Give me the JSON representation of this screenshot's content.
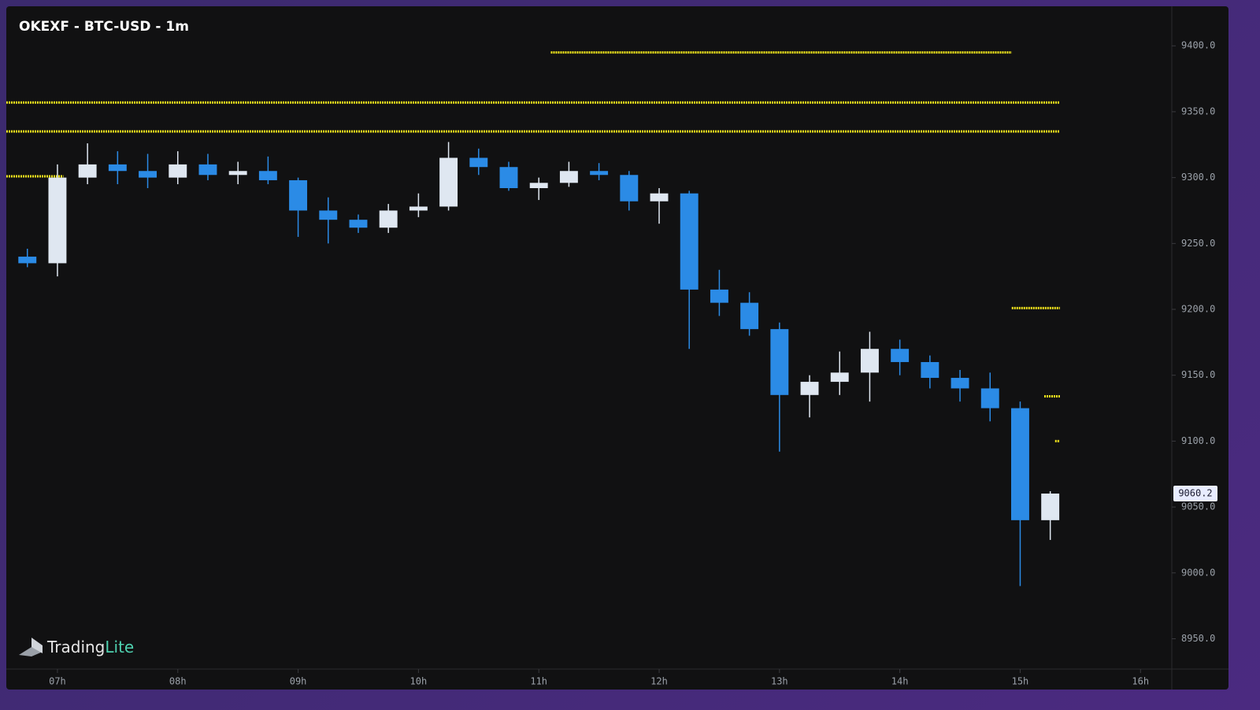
{
  "chart_data": {
    "type": "candlestick",
    "title": "OKEXF - BTC-USD - 1m",
    "watermark": [
      "Trading",
      "Lite"
    ],
    "x": [
      6.625,
      6.875,
      7.125,
      7.375,
      7.625,
      7.875,
      8.125,
      8.375,
      8.625,
      8.875,
      9.125,
      9.375,
      9.625,
      9.875,
      10.125,
      10.375,
      10.625,
      10.875,
      11.125,
      11.375,
      11.625,
      11.875,
      12.125,
      12.375,
      12.625,
      12.875,
      13.125,
      13.375,
      13.625,
      13.875,
      14.125,
      14.375,
      14.625,
      14.875,
      15.125
    ],
    "open": [
      9240,
      9235,
      9300,
      9310,
      9305,
      9300,
      9310,
      9302,
      9305,
      9298,
      9275,
      9268,
      9262,
      9275,
      9278,
      9315,
      9308,
      9292,
      9296,
      9305,
      9302,
      9282,
      9288,
      9215,
      9205,
      9185,
      9135,
      9145,
      9152,
      9170,
      9160,
      9148,
      9140,
      9125,
      9040
    ],
    "high": [
      9246,
      9310,
      9326,
      9320,
      9318,
      9320,
      9318,
      9312,
      9316,
      9300,
      9285,
      9272,
      9280,
      9288,
      9327,
      9322,
      9312,
      9300,
      9312,
      9311,
      9305,
      9292,
      9290,
      9230,
      9213,
      9190,
      9150,
      9168,
      9183,
      9177,
      9165,
      9154,
      9152,
      9130,
      9062
    ],
    "low": [
      9232,
      9225,
      9295,
      9295,
      9292,
      9295,
      9298,
      9295,
      9295,
      9255,
      9250,
      9258,
      9258,
      9270,
      9275,
      9302,
      9290,
      9283,
      9293,
      9298,
      9275,
      9265,
      9170,
      9195,
      9180,
      9092,
      9118,
      9135,
      9130,
      9150,
      9140,
      9130,
      9115,
      8990,
      9025
    ],
    "close": [
      9235,
      9300,
      9310,
      9305,
      9300,
      9310,
      9302,
      9305,
      9298,
      9275,
      9268,
      9262,
      9275,
      9278,
      9315,
      9308,
      9292,
      9296,
      9305,
      9302,
      9282,
      9288,
      9215,
      9205,
      9185,
      9135,
      9145,
      9152,
      9170,
      9160,
      9148,
      9140,
      9125,
      9040,
      9060.2
    ],
    "candle_width": 0.25,
    "up_color": "#dfe7f1",
    "down_color": "#2b8be6",
    "level_color": "#f2e51c",
    "levels": [
      {
        "price": 9395,
        "start": 11.1,
        "end": 14.93
      },
      {
        "price": 9357,
        "start": 6.575,
        "end": 15.33
      },
      {
        "price": 9335,
        "start": 6.575,
        "end": 15.33
      },
      {
        "price": 9301,
        "start": 6.575,
        "end": 7.05
      },
      {
        "price": 9201,
        "start": 14.93,
        "end": 15.33
      },
      {
        "price": 9134,
        "start": 15.2,
        "end": 15.33
      },
      {
        "price": 9100,
        "start": 15.29,
        "end": 15.33
      }
    ],
    "last_price": 9060.2,
    "xlim": [
      6.575,
      16.26
    ],
    "xticks": [
      {
        "value": 7,
        "label": "07h"
      },
      {
        "value": 8,
        "label": "08h"
      },
      {
        "value": 9,
        "label": "09h"
      },
      {
        "value": 10,
        "label": "10h"
      },
      {
        "value": 11,
        "label": "11h"
      },
      {
        "value": 12,
        "label": "12h"
      },
      {
        "value": 13,
        "label": "13h"
      },
      {
        "value": 14,
        "label": "14h"
      },
      {
        "value": 15,
        "label": "15h"
      },
      {
        "value": 16,
        "label": "16h"
      }
    ],
    "ylim": [
      8927,
      9430
    ],
    "yticks": [
      {
        "value": 8950,
        "label": "8950.0"
      },
      {
        "value": 9000,
        "label": "9000.0"
      },
      {
        "value": 9050,
        "label": "9050.0"
      },
      {
        "value": 9100,
        "label": "9100.0"
      },
      {
        "value": 9150,
        "label": "9150.0"
      },
      {
        "value": 9200,
        "label": "9200.0"
      },
      {
        "value": 9250,
        "label": "9250.0"
      },
      {
        "value": 9300,
        "label": "9300.0"
      },
      {
        "value": 9350,
        "label": "9350.0"
      },
      {
        "value": 9400,
        "label": "9400.0"
      }
    ]
  }
}
